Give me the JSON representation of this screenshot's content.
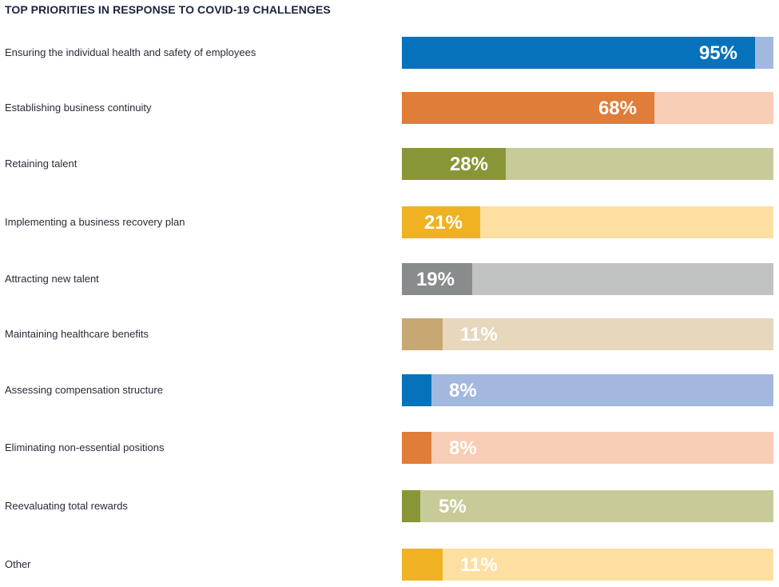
{
  "chart_data": {
    "type": "bar",
    "orientation": "horizontal",
    "title": "TOP PRIORITIES IN RESPONSE TO COVID-19 CHALLENGES",
    "xlabel": "",
    "ylabel": "",
    "xlim": [
      0,
      100
    ],
    "grid": false,
    "legend": "none",
    "categories": [
      "Ensuring the individual health and safety of employees",
      "Establishing business continuity",
      "Retaining talent",
      "Implementing a business recovery plan",
      "Attracting new talent",
      "Maintaining healthcare benefits",
      "Assessing compensation structure",
      "Eliminating non-essential positions",
      "Reevaluating total rewards",
      "Other"
    ],
    "values": [
      95,
      68,
      28,
      21,
      19,
      11,
      8,
      8,
      5,
      11
    ],
    "value_labels": [
      "95%",
      "68%",
      "28%",
      "21%",
      "19%",
      "11%",
      "8%",
      "8%",
      "5%",
      "11%"
    ],
    "colors": [
      {
        "fill": "#0672bb",
        "track": "#a2b8df"
      },
      {
        "fill": "#df7d39",
        "track": "#f8cdb5"
      },
      {
        "fill": "#8a9537",
        "track": "#c8cb98"
      },
      {
        "fill": "#f0b223",
        "track": "#fddfa1"
      },
      {
        "fill": "#888c8c",
        "track": "#c1c3c2"
      },
      {
        "fill": "#c7a874",
        "track": "#e6d7bd"
      },
      {
        "fill": "#0672bb",
        "track": "#a2b8df"
      },
      {
        "fill": "#df7d39",
        "track": "#f8cdb5"
      },
      {
        "fill": "#8a9537",
        "track": "#c8cb98"
      },
      {
        "fill": "#f0b223",
        "track": "#fddfa1"
      }
    ]
  }
}
